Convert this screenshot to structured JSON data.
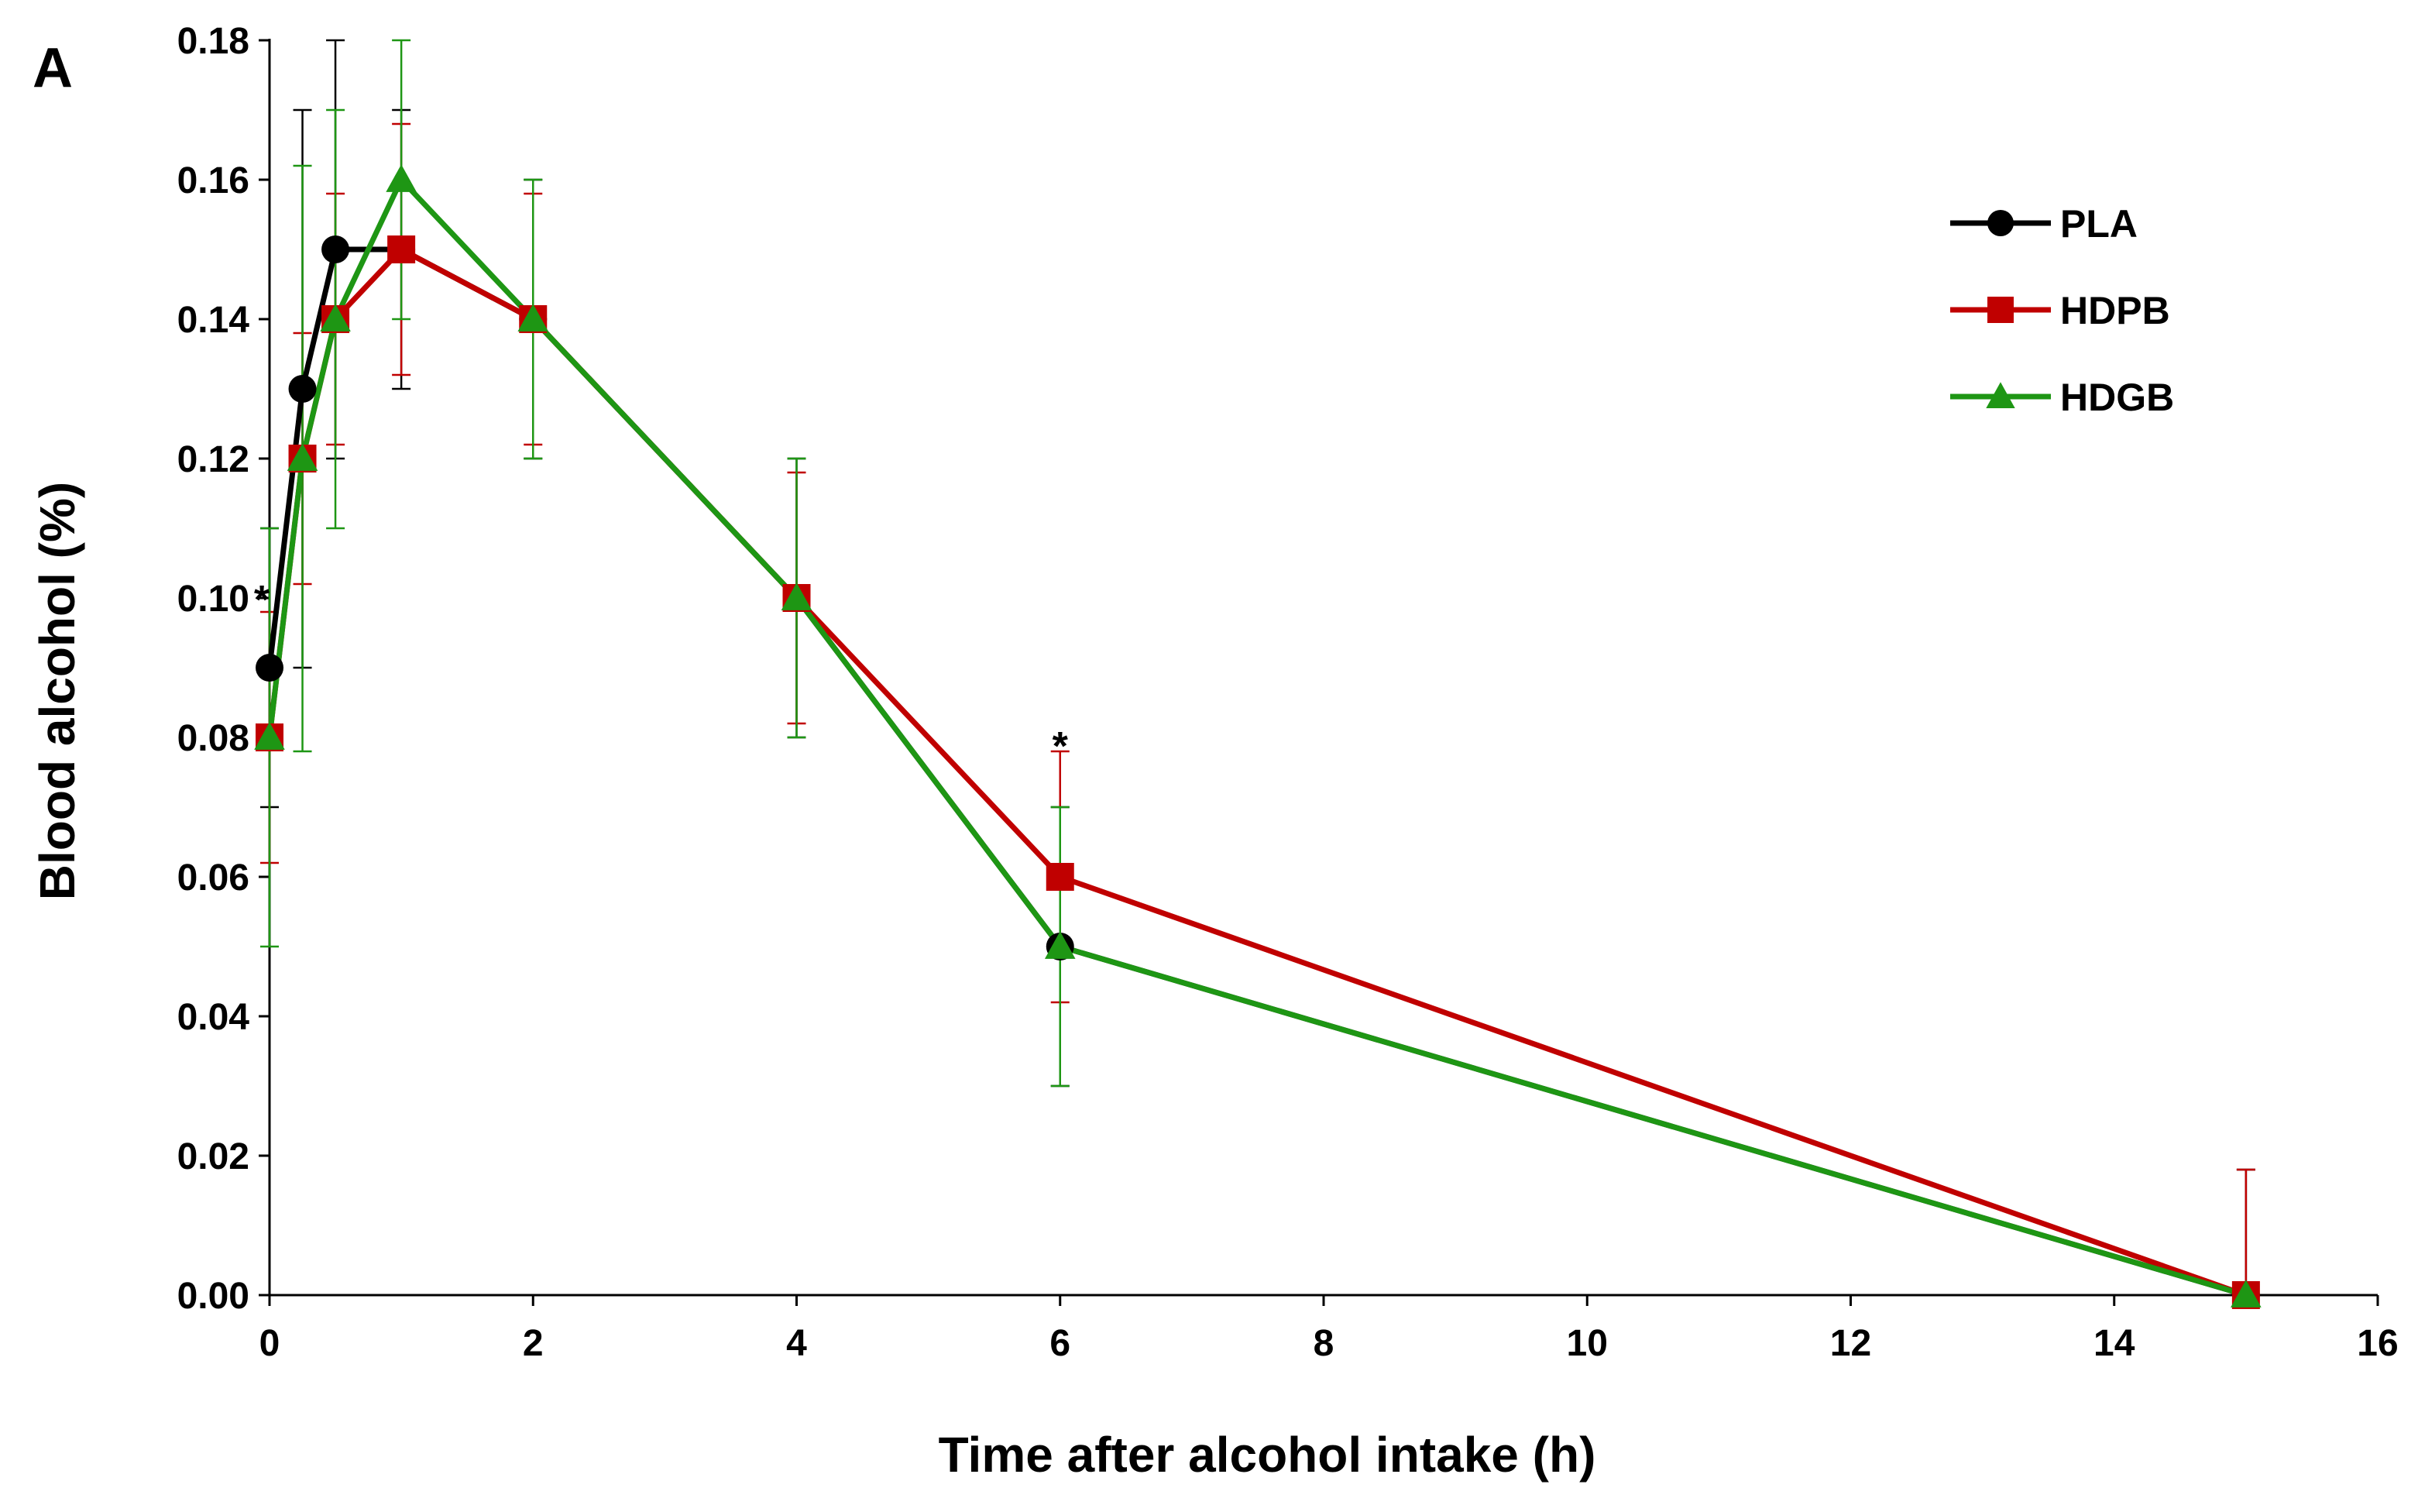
{
  "chart_data": {
    "type": "line",
    "panel_label": "A",
    "title": "",
    "xlabel": "Time after alcohol intake (h)",
    "ylabel": "Blood alcohol (%)",
    "xlim": [
      0,
      16
    ],
    "ylim": [
      0,
      0.18
    ],
    "xticks": [
      0,
      2,
      4,
      6,
      8,
      10,
      12,
      14,
      16
    ],
    "yticks": [
      0.0,
      0.02,
      0.04,
      0.06,
      0.08,
      0.1,
      0.12,
      0.14,
      0.16,
      0.18
    ],
    "ytick_labels": [
      "0.00",
      "0.02",
      "0.04",
      "0.06",
      "0.08",
      "0.10",
      "0.12",
      "0.14",
      "0.16",
      "0.18"
    ],
    "xtick_labels": [
      "0",
      "2",
      "4",
      "6",
      "8",
      "10",
      "12",
      "14",
      "16"
    ],
    "grid": false,
    "legend_position": "top-right",
    "series": [
      {
        "name": "PLA",
        "color": "#000000",
        "marker": "circle",
        "x": [
          0,
          0.25,
          0.5,
          1,
          2,
          4,
          6,
          15
        ],
        "y": [
          0.09,
          0.13,
          0.15,
          0.15,
          0.14,
          0.1,
          0.05,
          0.0
        ],
        "err": [
          0.02,
          0.04,
          0.03,
          0.02,
          0.02,
          0.02,
          0.02,
          0.018
        ]
      },
      {
        "name": "HDPB",
        "color": "#c00000",
        "marker": "square",
        "x": [
          0,
          0.25,
          0.5,
          1,
          2,
          4,
          6,
          15
        ],
        "y": [
          0.08,
          0.12,
          0.14,
          0.15,
          0.14,
          0.1,
          0.06,
          0.0
        ],
        "err": [
          0.018,
          0.018,
          0.018,
          0.018,
          0.018,
          0.018,
          0.018,
          0.018
        ]
      },
      {
        "name": "HDGB",
        "color": "#1e9614",
        "marker": "triangle",
        "x": [
          0,
          0.25,
          0.5,
          1,
          2,
          4,
          6,
          15
        ],
        "y": [
          0.08,
          0.12,
          0.14,
          0.16,
          0.14,
          0.1,
          0.05,
          0.0
        ],
        "err": [
          0.03,
          0.042,
          0.03,
          0.02,
          0.02,
          0.02,
          0.02,
          0.0
        ]
      }
    ],
    "annotations": [
      {
        "text": "*",
        "x": 0,
        "y": 0.1
      },
      {
        "text": "*",
        "x": 6,
        "y": 0.079
      }
    ]
  }
}
